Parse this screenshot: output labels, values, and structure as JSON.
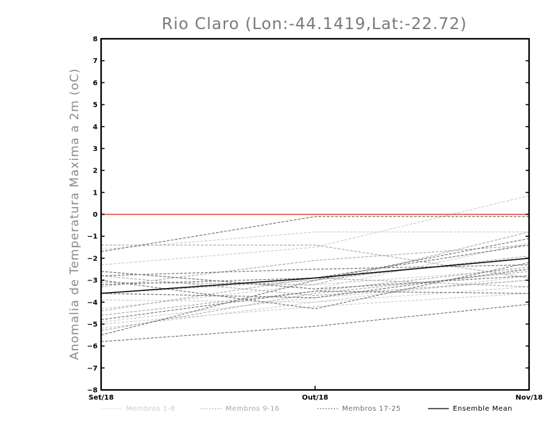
{
  "chart_data": {
    "type": "line",
    "title": "Rio Claro (Lon:-44.1419,Lat:-22.72)",
    "ylabel": "Anomalia de Temperatura Maxima a 2m (oC)",
    "xlabel": "",
    "categories": [
      "Set/18",
      "Out/18",
      "Nov/18"
    ],
    "ylim": [
      -8,
      8
    ],
    "yticks": [
      -8,
      -7,
      -6,
      -5,
      -4,
      -3,
      -2,
      -1,
      0,
      1,
      2,
      3,
      4,
      5,
      6,
      7,
      8
    ],
    "reference_line": {
      "value": 0,
      "color": "#e8413a"
    },
    "grid": false,
    "legend_position": "bottom",
    "groups": [
      {
        "name": "Membros 1-8",
        "color": "#cccccc",
        "dashed": true,
        "series": [
          [
            -2.3,
            -1.5,
            0.85
          ],
          [
            -4.3,
            -3.2,
            -2.5
          ],
          [
            -4.9,
            -3.8,
            -3.0
          ],
          [
            -1.6,
            -0.8,
            -0.8
          ],
          [
            -3.9,
            -4.0,
            -2.8
          ],
          [
            -5.0,
            -4.2,
            -3.6
          ],
          [
            -2.6,
            -3.4,
            -1.3
          ],
          [
            -5.2,
            -4.0,
            -3.3
          ]
        ]
      },
      {
        "name": "Membros 9-16",
        "color": "#a8a8a8",
        "dashed": true,
        "series": [
          [
            -1.4,
            -1.4,
            -2.9
          ],
          [
            -3.3,
            -2.1,
            -1.4
          ],
          [
            -4.6,
            -3.5,
            -2.4
          ],
          [
            -3.1,
            -3.2,
            -0.8
          ],
          [
            -5.3,
            -3.6,
            -2.6
          ],
          [
            -3.6,
            -3.0,
            -1.9
          ],
          [
            -2.8,
            -3.7,
            -3.0
          ],
          [
            -4.4,
            -2.9,
            -3.3
          ]
        ]
      },
      {
        "name": "Membros 17-25",
        "color": "#6e6e6e",
        "dashed": true,
        "series": [
          [
            -1.7,
            -0.1,
            -0.1
          ],
          [
            -5.8,
            -5.1,
            -4.1
          ],
          [
            -3.2,
            -2.9,
            -1.4
          ],
          [
            -2.8,
            -2.5,
            -2.3
          ],
          [
            -4.8,
            -3.5,
            -3.6
          ],
          [
            -3.6,
            -3.8,
            -2.5
          ],
          [
            -5.5,
            -3.0,
            -1.1
          ],
          [
            -2.6,
            -3.4,
            -2.8
          ],
          [
            -3.0,
            -4.3,
            -2.2
          ]
        ]
      }
    ],
    "ensemble_mean": {
      "name": "Ensemble Mean",
      "color": "#000000",
      "dashed": false,
      "values": [
        -3.6,
        -2.9,
        -2.0
      ]
    }
  }
}
